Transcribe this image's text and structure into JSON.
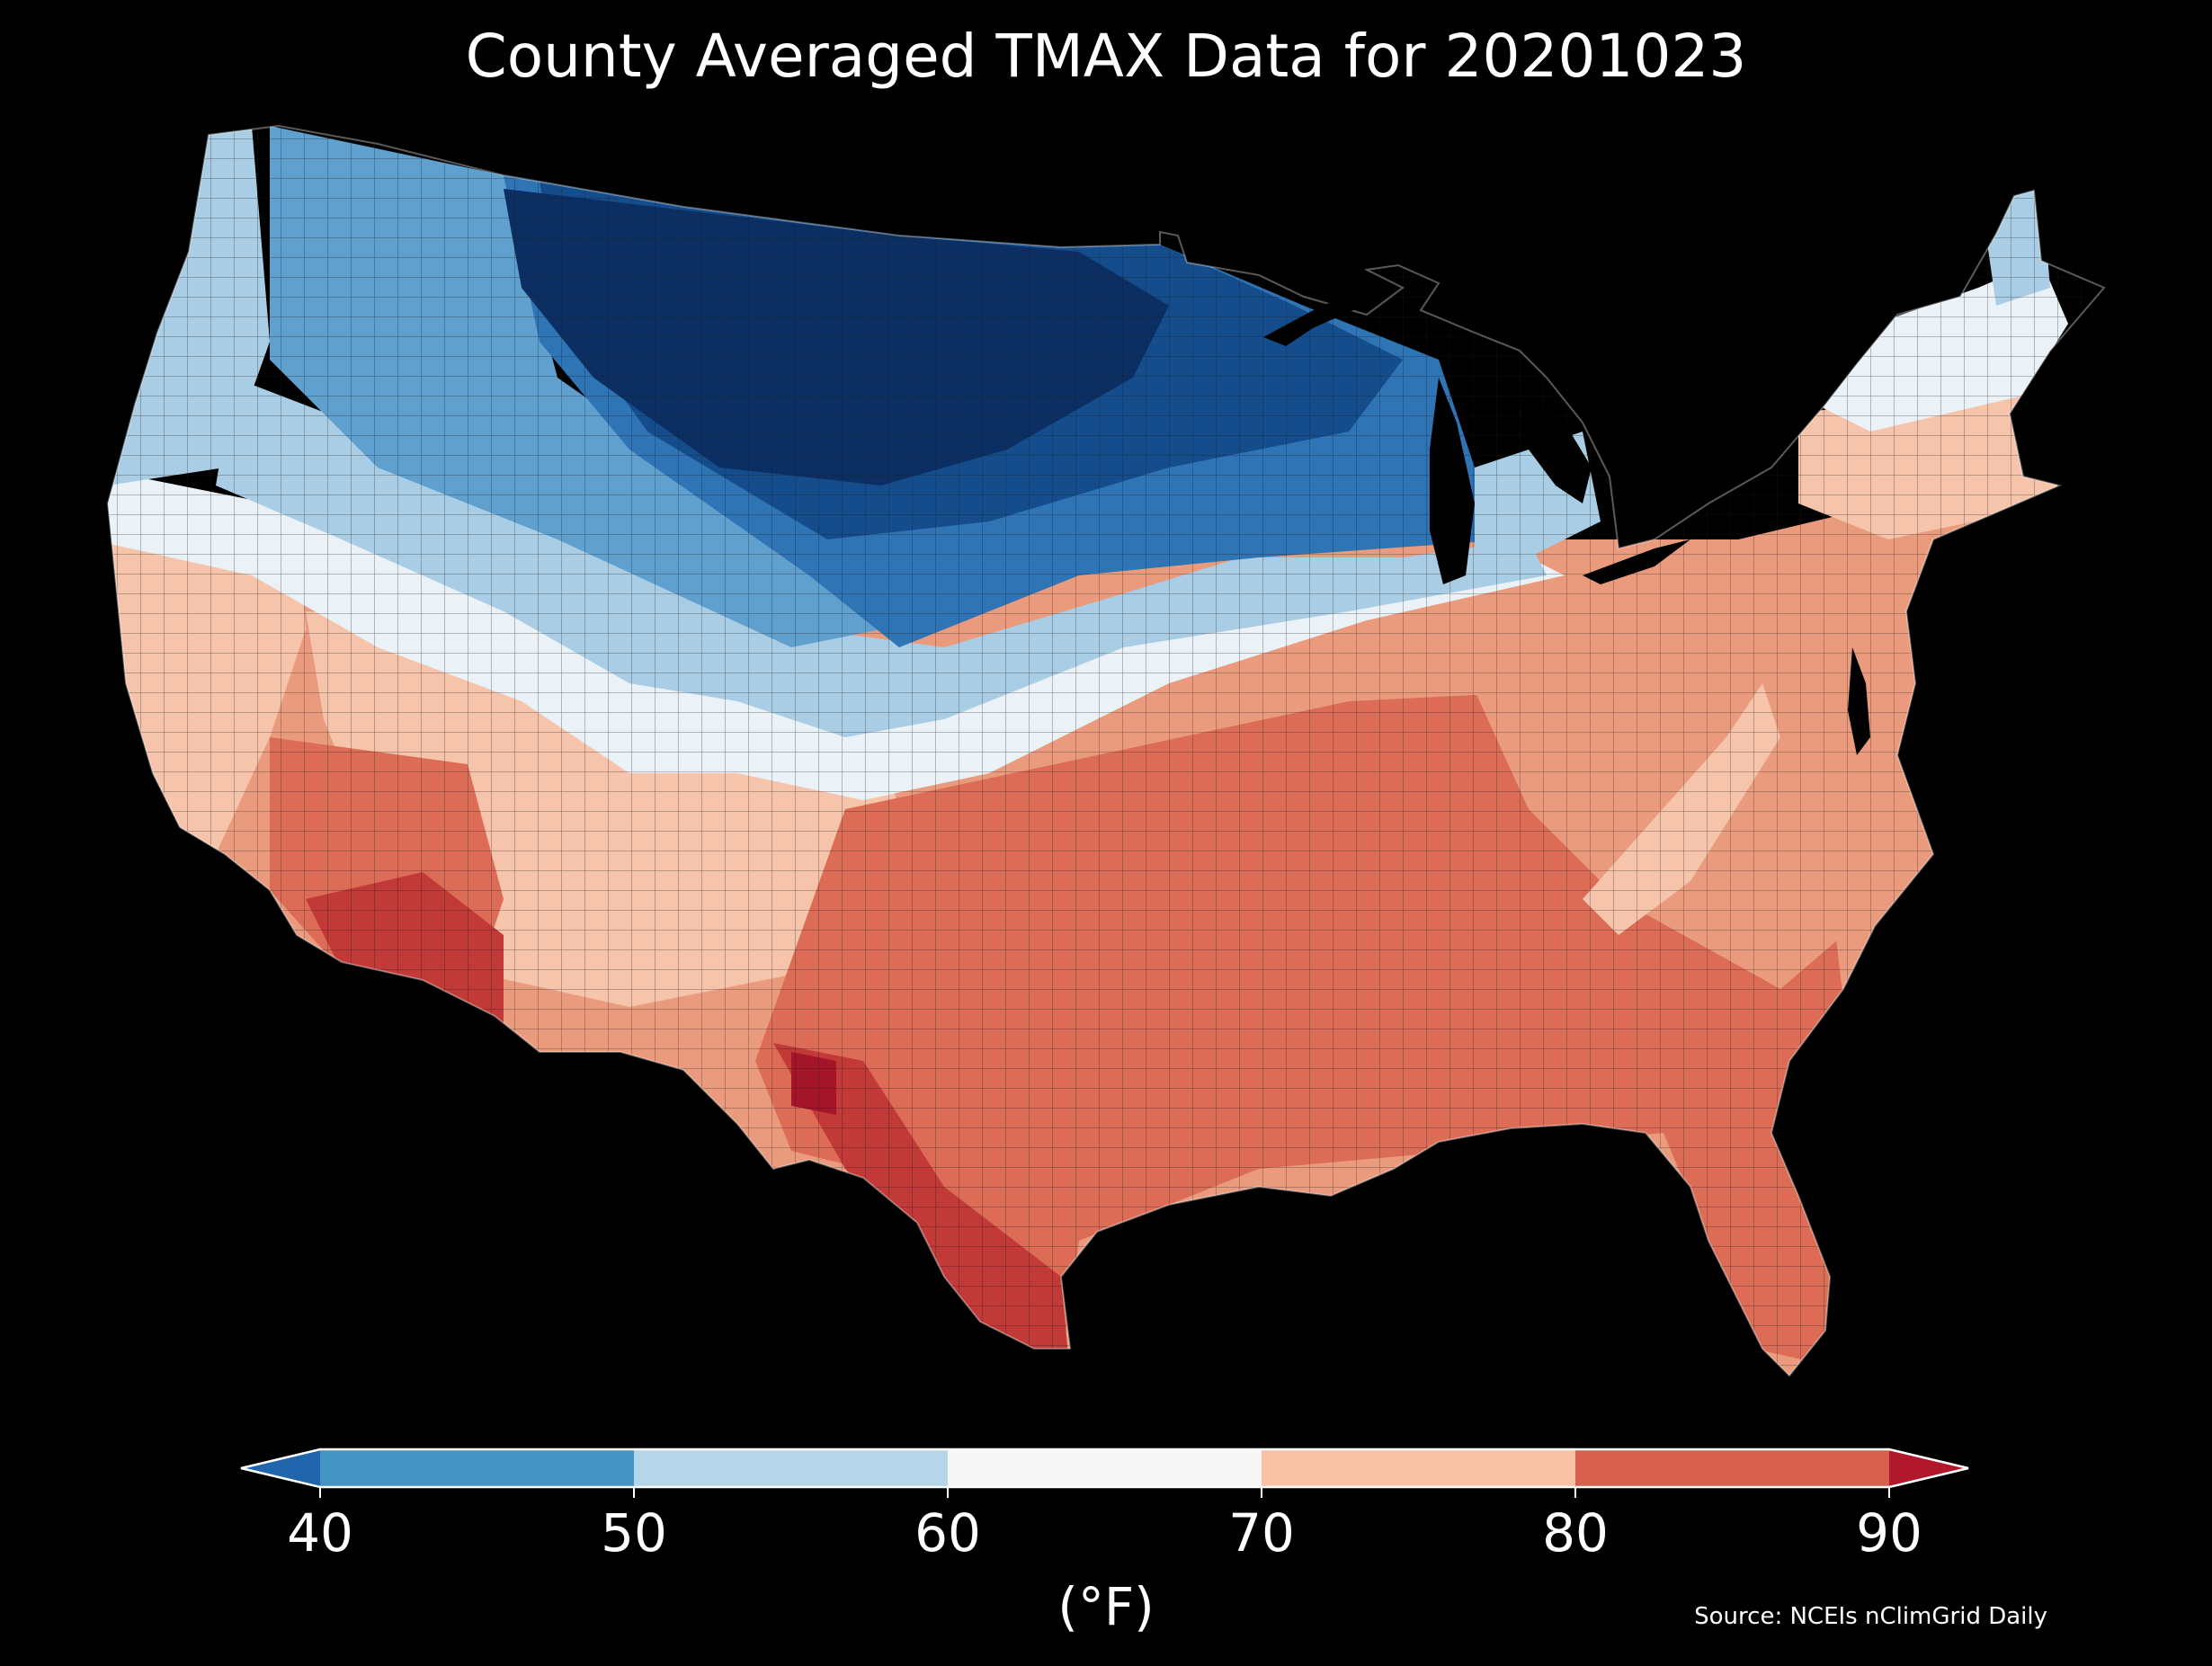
{
  "title": "County Averaged TMAX Data for 20201023",
  "colorbar": {
    "unit_label": "(°F)",
    "ticks": [
      "40",
      "50",
      "60",
      "70",
      "80",
      "90"
    ],
    "bins": [
      {
        "from": null,
        "to": 40,
        "color": "#2166ac"
      },
      {
        "from": 40,
        "to": 50,
        "color": "#4393c3"
      },
      {
        "from": 50,
        "to": 60,
        "color": "#b5d6e9"
      },
      {
        "from": 60,
        "to": 70,
        "color": "#f7f7f7"
      },
      {
        "from": 70,
        "to": 80,
        "color": "#f9c2a6"
      },
      {
        "from": 80,
        "to": 90,
        "color": "#d6604d"
      },
      {
        "from": 90,
        "to": null,
        "color": "#b2182b"
      }
    ],
    "extend": "both"
  },
  "map_colors": {
    "deep_blue": "#0b2f63",
    "dark_blue": "#154d8c",
    "mid_blue": "#2f74b5",
    "light_blue": "#5fa0cf",
    "pale_blue": "#a9cde4",
    "near_white": "#eaf2f7",
    "pale_red": "#f5c4ab",
    "light_red": "#ea9b7e",
    "mid_red": "#dc6c56",
    "dark_red": "#c23a38",
    "deep_red": "#a5152a"
  },
  "source": "Source: NCEIs nClimGrid Daily"
}
